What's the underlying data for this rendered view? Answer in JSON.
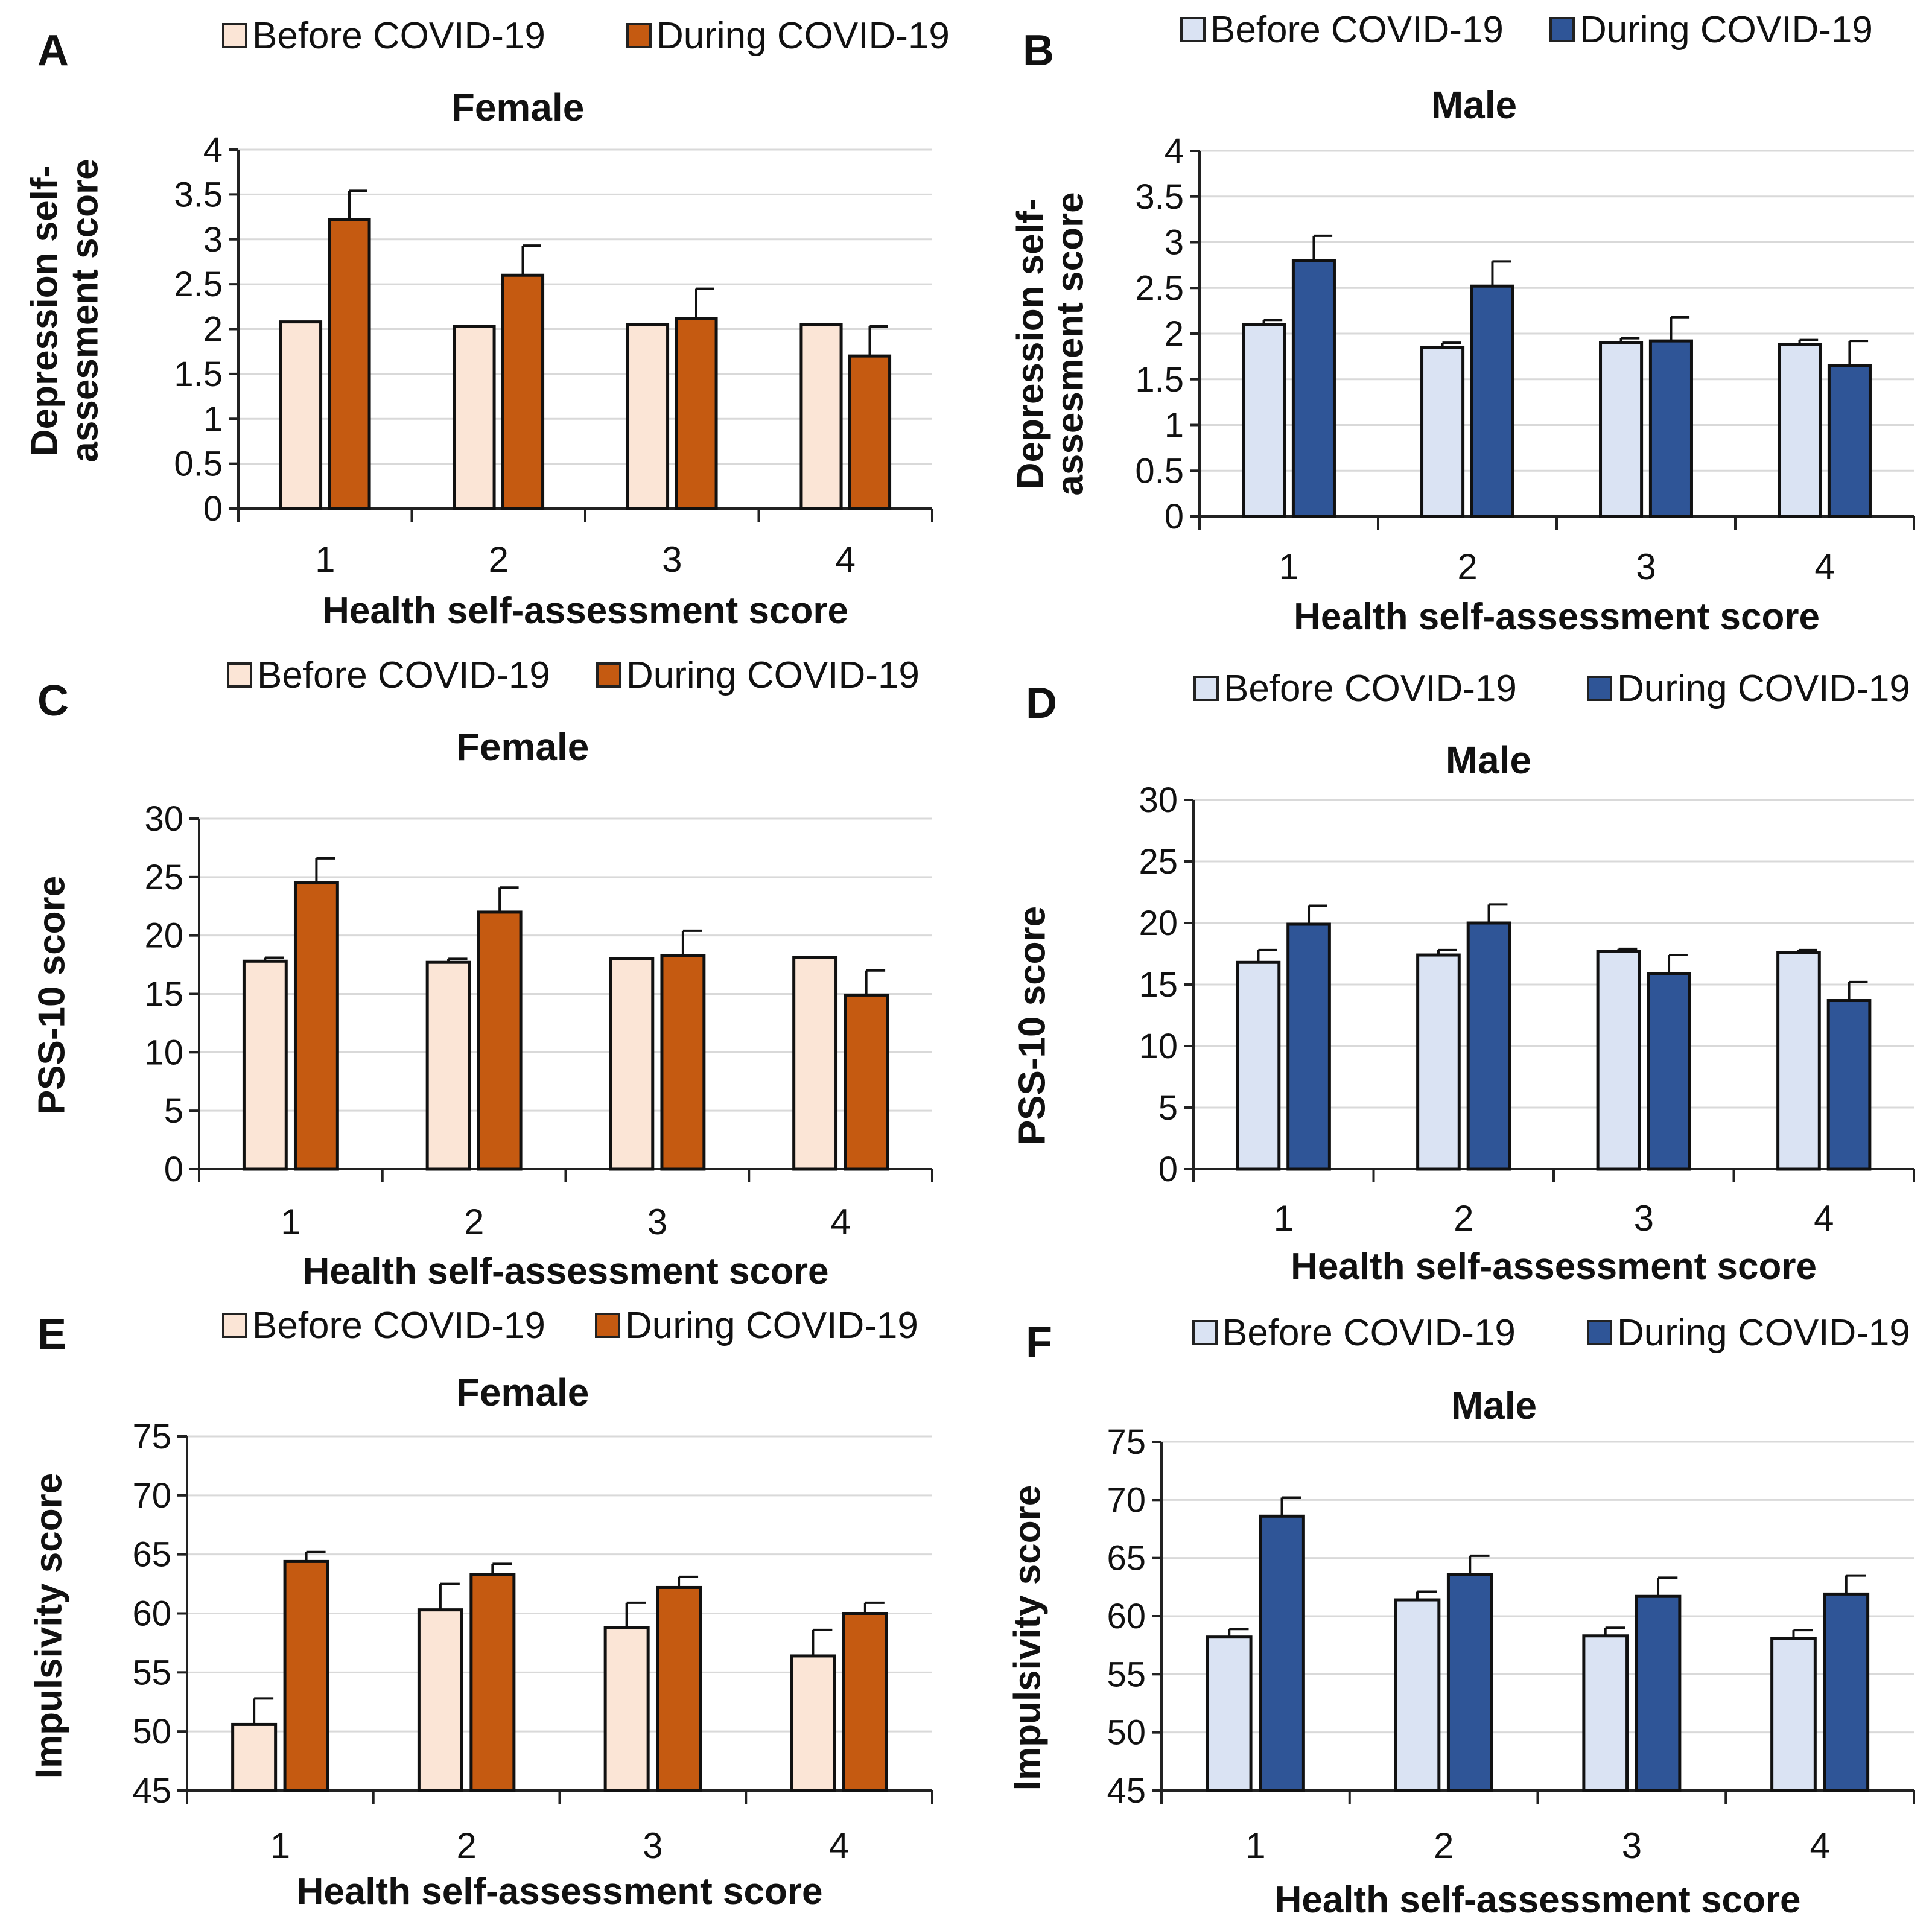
{
  "chart_data": [
    {
      "panel": "A",
      "type": "bar",
      "title": "Female",
      "xlabel": "Health self-assessment score",
      "ylabel_lines": [
        "Depression self-",
        "assesment score"
      ],
      "categories": [
        "1",
        "2",
        "3",
        "4"
      ],
      "ylim": [
        0,
        4
      ],
      "yticks": [
        "0",
        "0.5",
        "1",
        "1.5",
        "2",
        "2.5",
        "3",
        "3.5",
        "4"
      ],
      "grid": true,
      "legend": "top",
      "series": [
        {
          "name": "Before COVID-19",
          "color": "#FBE5D6",
          "values": [
            2.08,
            2.03,
            2.05,
            2.05
          ],
          "errors": [
            0,
            0,
            0,
            0
          ]
        },
        {
          "name": "During COVID-19",
          "color": "#C55A11",
          "values": [
            3.22,
            2.6,
            2.12,
            1.7
          ],
          "errors": [
            0.32,
            0.33,
            0.33,
            0.33
          ]
        }
      ]
    },
    {
      "panel": "B",
      "type": "bar",
      "title": "Male",
      "xlabel": "Health self-assessment score",
      "ylabel_lines": [
        "Depression self-",
        "assesment score"
      ],
      "categories": [
        "1",
        "2",
        "3",
        "4"
      ],
      "ylim": [
        0,
        4
      ],
      "yticks": [
        "0",
        "0.5",
        "1",
        "1.5",
        "2",
        "2.5",
        "3",
        "3.5",
        "4"
      ],
      "grid": true,
      "legend": "top",
      "series": [
        {
          "name": "Before COVID-19",
          "color": "#DAE3F3",
          "values": [
            2.1,
            1.85,
            1.9,
            1.88
          ],
          "errors": [
            0.05,
            0.05,
            0.05,
            0.05
          ]
        },
        {
          "name": "During COVID-19",
          "color": "#2F5597",
          "values": [
            2.8,
            2.52,
            1.92,
            1.65
          ],
          "errors": [
            0.27,
            0.27,
            0.26,
            0.27
          ]
        }
      ]
    },
    {
      "panel": "C",
      "type": "bar",
      "title": "Female",
      "xlabel": "Health self-assessment score",
      "ylabel_lines": [
        "PSS-10  score"
      ],
      "categories": [
        "1",
        "2",
        "3",
        "4"
      ],
      "ylim": [
        0,
        30
      ],
      "yticks": [
        "0",
        "5",
        "10",
        "15",
        "20",
        "25",
        "30"
      ],
      "grid": true,
      "legend": "top",
      "series": [
        {
          "name": "Before COVID-19",
          "color": "#FBE5D6",
          "values": [
            17.8,
            17.7,
            18.0,
            18.1
          ],
          "errors": [
            0.3,
            0.3,
            0,
            0
          ]
        },
        {
          "name": "During COVID-19",
          "color": "#C55A11",
          "values": [
            24.5,
            22.0,
            18.3,
            14.9
          ],
          "errors": [
            2.1,
            2.1,
            2.1,
            2.1
          ]
        }
      ]
    },
    {
      "panel": "D",
      "type": "bar",
      "title": "Male",
      "xlabel": "Health self-assessment score",
      "ylabel_lines": [
        "PSS-10 score"
      ],
      "categories": [
        "1",
        "2",
        "3",
        "4"
      ],
      "ylim": [
        0,
        30
      ],
      "yticks": [
        "0",
        "5",
        "10",
        "15",
        "20",
        "25",
        "30"
      ],
      "grid": true,
      "legend": "top",
      "series": [
        {
          "name": "Before COVID-19",
          "color": "#DAE3F3",
          "values": [
            16.8,
            17.4,
            17.7,
            17.6
          ],
          "errors": [
            1.0,
            0.4,
            0.2,
            0.2
          ]
        },
        {
          "name": "During COVID-19",
          "color": "#2F5597",
          "values": [
            19.9,
            20.0,
            15.9,
            13.7
          ],
          "errors": [
            1.5,
            1.5,
            1.5,
            1.5
          ]
        }
      ]
    },
    {
      "panel": "E",
      "type": "bar",
      "title": "Female",
      "xlabel": "Health self-assessment score",
      "ylabel_lines": [
        "Impulsivity score"
      ],
      "categories": [
        "1",
        "2",
        "3",
        "4"
      ],
      "ylim": [
        45,
        75
      ],
      "yticks": [
        "45",
        "50",
        "55",
        "60",
        "65",
        "70",
        "75"
      ],
      "grid": true,
      "legend": "top",
      "series": [
        {
          "name": "Before COVID-19",
          "color": "#FBE5D6",
          "values": [
            50.6,
            60.3,
            58.8,
            56.4
          ],
          "errors": [
            2.2,
            2.2,
            2.1,
            2.2
          ]
        },
        {
          "name": "During COVID-19",
          "color": "#C55A11",
          "values": [
            64.4,
            63.3,
            62.2,
            60.0
          ],
          "errors": [
            0.8,
            0.9,
            0.9,
            0.9
          ]
        }
      ]
    },
    {
      "panel": "F",
      "type": "bar",
      "title": "Male",
      "xlabel": "Health self-assessment score",
      "ylabel_lines": [
        "Impulsivity score"
      ],
      "categories": [
        "1",
        "2",
        "3",
        "4"
      ],
      "ylim": [
        45,
        75
      ],
      "yticks": [
        "45",
        "50",
        "55",
        "60",
        "65",
        "70",
        "75"
      ],
      "grid": true,
      "legend": "top",
      "series": [
        {
          "name": "Before COVID-19",
          "color": "#DAE3F3",
          "values": [
            58.2,
            61.4,
            58.3,
            58.1
          ],
          "errors": [
            0.7,
            0.7,
            0.7,
            0.7
          ]
        },
        {
          "name": "During COVID-19",
          "color": "#2F5597",
          "values": [
            68.6,
            63.6,
            61.7,
            61.9
          ],
          "errors": [
            1.6,
            1.6,
            1.6,
            1.6
          ]
        }
      ]
    }
  ]
}
